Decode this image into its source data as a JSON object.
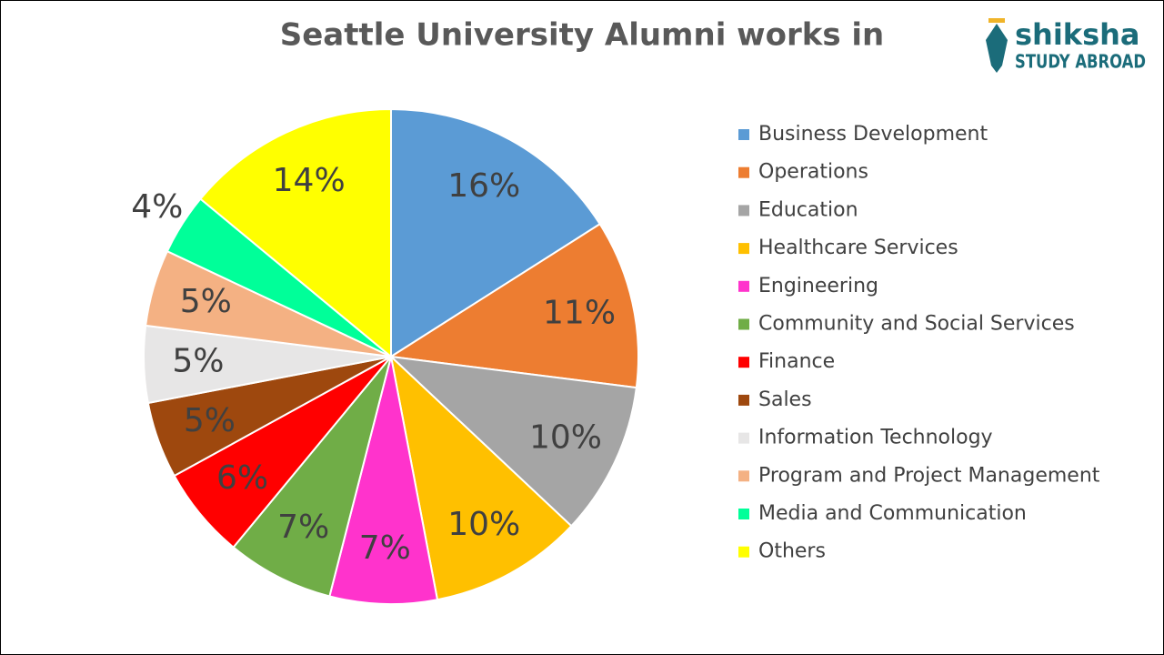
{
  "logo": {
    "name": "shiksha",
    "tagline": "STUDY ABROAD"
  },
  "chart_data": {
    "type": "pie",
    "title": "Seattle University Alumni works in",
    "categories": [
      "Business Development",
      "Operations",
      "Education",
      "Healthcare Services",
      "Engineering",
      "Community and Social Services",
      "Finance",
      "Sales",
      "Information Technology",
      "Program and Project Management",
      "Media and Communication",
      "Others"
    ],
    "values": [
      16,
      11,
      10,
      10,
      7,
      7,
      6,
      5,
      5,
      5,
      4,
      14
    ],
    "value_labels": [
      "16%",
      "11%",
      "10%",
      "10%",
      "7%",
      "7%",
      "6%",
      "5%",
      "5%",
      "5%",
      "4%",
      "14%"
    ],
    "colors": [
      "#5b9bd5",
      "#ed7d31",
      "#a5a5a5",
      "#ffc000",
      "#ff33cc",
      "#70ad47",
      "#ff0000",
      "#9e480e",
      "#e7e6e6",
      "#f4b183",
      "#00ff99",
      "#ffff00"
    ],
    "legend": "right"
  }
}
